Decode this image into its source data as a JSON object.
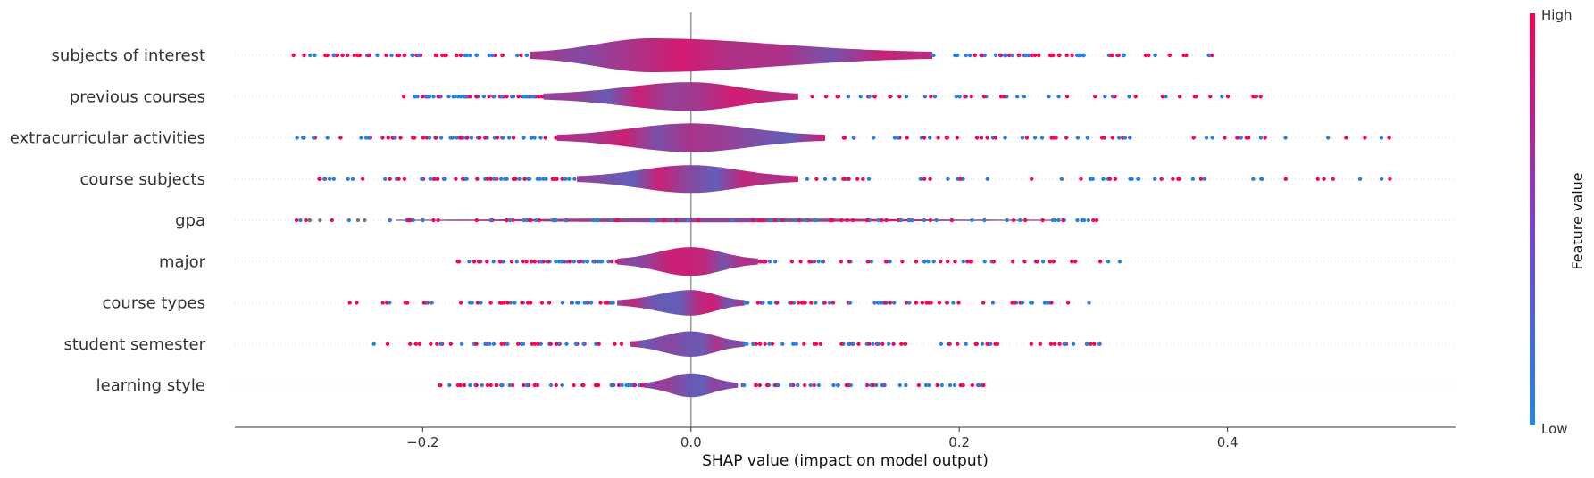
{
  "chart_data": {
    "type": "scatter",
    "subtype": "shap-violin-summary",
    "xlabel": "SHAP value (impact on model output)",
    "xlim": [
      -0.34,
      0.57
    ],
    "xticks": [
      -0.2,
      0.0,
      0.2,
      0.4
    ],
    "xtick_labels": [
      "−0.2",
      "0.0",
      "0.2",
      "0.4"
    ],
    "zero_line": 0.0,
    "colorbar": {
      "title": "Feature value",
      "high_label": "High",
      "low_label": "Low",
      "low_color": "#1e88e5",
      "high_color": "#ff0052"
    },
    "features": [
      {
        "name": "subjects of interest",
        "min": -0.3,
        "max": 0.4,
        "core": [
          -0.12,
          0.18
        ],
        "peak": -0.03,
        "width": 1.0
      },
      {
        "name": "previous courses",
        "min": -0.22,
        "max": 0.435,
        "core": [
          -0.11,
          0.08
        ],
        "peak": 0.0,
        "width": 0.85
      },
      {
        "name": "extracurricular activities",
        "min": -0.295,
        "max": 0.53,
        "core": [
          -0.1,
          0.1
        ],
        "peak": 0.0,
        "width": 0.85
      },
      {
        "name": "course subjects",
        "min": -0.29,
        "max": 0.53,
        "core": [
          -0.085,
          0.08
        ],
        "peak": 0.0,
        "width": 0.82
      },
      {
        "name": "gpa",
        "min": -0.295,
        "max": 0.32,
        "core": [
          -0.22,
          0.27
        ],
        "peak": 0.0,
        "width": 0.12
      },
      {
        "name": "major",
        "min": -0.18,
        "max": 0.32,
        "core": [
          -0.055,
          0.05
        ],
        "peak": 0.0,
        "width": 0.85
      },
      {
        "name": "course types",
        "min": -0.26,
        "max": 0.3,
        "core": [
          -0.055,
          0.04
        ],
        "peak": 0.0,
        "width": 0.75
      },
      {
        "name": "student semester",
        "min": -0.24,
        "max": 0.315,
        "core": [
          -0.045,
          0.04
        ],
        "peak": 0.0,
        "width": 0.75
      },
      {
        "name": "learning style",
        "min": -0.205,
        "max": 0.22,
        "core": [
          -0.035,
          0.035
        ],
        "peak": 0.0,
        "width": 0.7
      }
    ]
  }
}
